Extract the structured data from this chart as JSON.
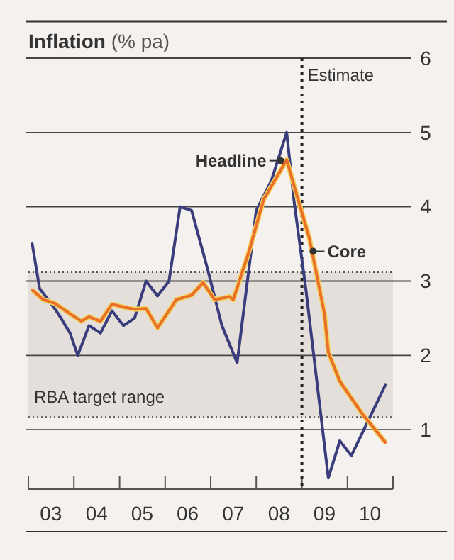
{
  "chart_data": {
    "type": "line",
    "title": "Inflation",
    "ylabel": "(% pa)",
    "xlim": [
      "2003",
      "2011"
    ],
    "xticks": [
      {
        "value": "2003",
        "label": null
      },
      {
        "value": "2003-07",
        "label": "03"
      },
      {
        "value": "2004",
        "label": null
      },
      {
        "value": "2004-07",
        "label": "04"
      },
      {
        "value": "2005",
        "label": null
      },
      {
        "value": "2005-07",
        "label": "05"
      },
      {
        "value": "2006",
        "label": null
      },
      {
        "value": "2006-07",
        "label": "06"
      },
      {
        "value": "2007",
        "label": null
      },
      {
        "value": "2007-07",
        "label": "07"
      },
      {
        "value": "2008",
        "label": null
      },
      {
        "value": "2008-07",
        "label": "08"
      },
      {
        "value": "2009",
        "label": null
      },
      {
        "value": "2009-07",
        "label": "09"
      },
      {
        "value": "2010",
        "label": null
      },
      {
        "value": "2010-07",
        "label": "10"
      },
      {
        "value": "2011",
        "label": null
      }
    ],
    "ylim": [
      0.2,
      6
    ],
    "yticks": [
      1,
      2,
      3,
      4,
      5,
      6
    ],
    "grid": "y",
    "legend": false,
    "series": [
      {
        "name": "Headline",
        "color": "#3a3d7c",
        "x": [
          "2003-02",
          "2003-04",
          "2003-07",
          "2003-09",
          "2003-12",
          "2004-02",
          "2004-05",
          "2004-08",
          "2004-11",
          "2005-02",
          "2005-05",
          "2005-08",
          "2005-11",
          "2006-02",
          "2006-05",
          "2006-08",
          "2006-12",
          "2007-04",
          "2007-08",
          "2008-01",
          "2008-05",
          "2008-09",
          "2008-11",
          "2009-02",
          "2009-08",
          "2009-11",
          "2010-02",
          "2010-11"
        ],
        "values": [
          3.5,
          2.9,
          2.7,
          2.55,
          2.3,
          2.0,
          2.4,
          2.3,
          2.6,
          2.4,
          2.5,
          3.0,
          2.8,
          3.0,
          4.0,
          3.95,
          3.2,
          2.4,
          1.9,
          3.95,
          4.35,
          5.0,
          4.05,
          2.9,
          0.35,
          0.85,
          0.65,
          1.6
        ]
      },
      {
        "name": "Core",
        "color": "#e8702a",
        "x": [
          "2003-02",
          "2003-05",
          "2003-08",
          "2003-12",
          "2004-03",
          "2004-05",
          "2004-08",
          "2004-11",
          "2005-02",
          "2005-05",
          "2005-08",
          "2005-11",
          "2006-04",
          "2006-08",
          "2006-11",
          "2007-02",
          "2007-06",
          "2007-07",
          "2007-11",
          "2008-03",
          "2008-09",
          "2008-12",
          "2009-03",
          "2009-07",
          "2009-08",
          "2009-11",
          "2010-05",
          "2010-11"
        ],
        "values": [
          2.88,
          2.75,
          2.7,
          2.56,
          2.46,
          2.52,
          2.46,
          2.69,
          2.65,
          2.62,
          2.63,
          2.37,
          2.75,
          2.81,
          2.98,
          2.75,
          2.79,
          2.75,
          3.38,
          4.1,
          4.63,
          4.1,
          3.58,
          2.56,
          2.04,
          1.65,
          1.21,
          0.83
        ]
      }
    ],
    "bands": [
      {
        "axis": "y",
        "from": 1.17,
        "to": 3.12,
        "label": "RBA target range",
        "color": "#e4dfdb"
      }
    ],
    "ref_lines": [
      {
        "axis": "x",
        "value": "2009",
        "label": "Estimate",
        "line_style": "dotted"
      },
      {
        "axis": "y",
        "value": 1.17,
        "line_style": "dotted"
      },
      {
        "axis": "y",
        "value": 3.12,
        "line_style": "dotted"
      }
    ]
  }
}
